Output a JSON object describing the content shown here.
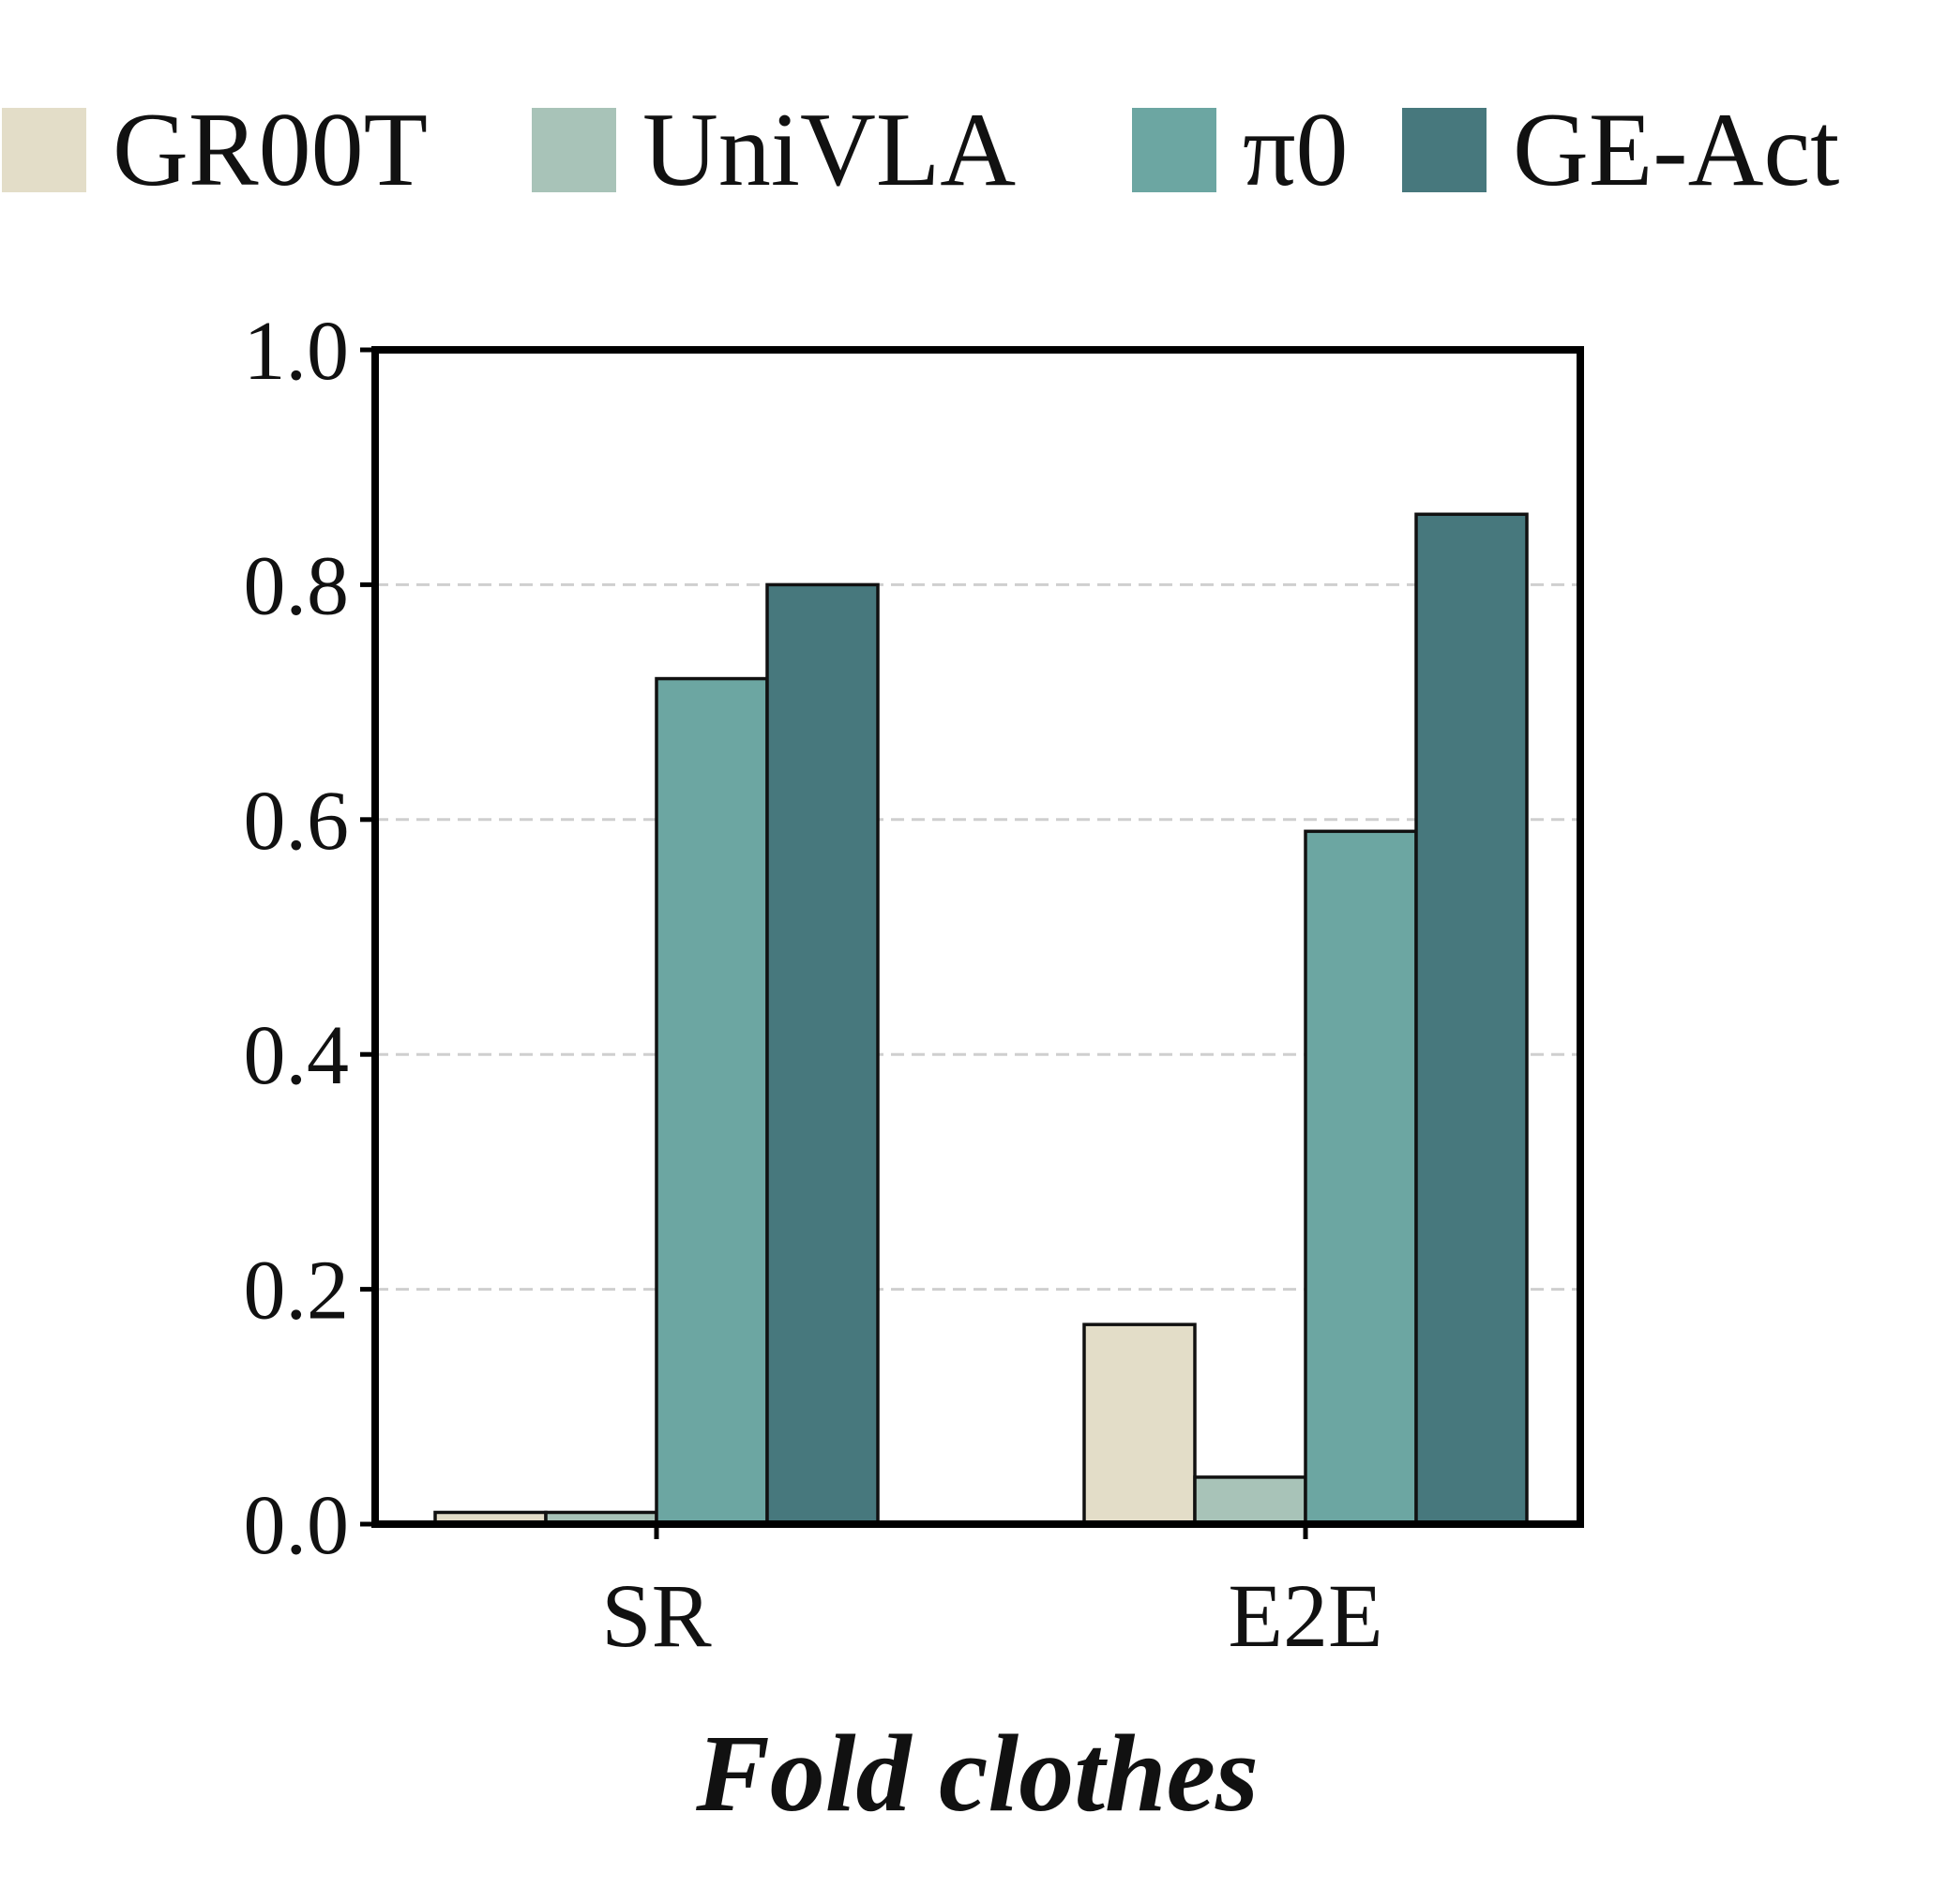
{
  "chart_data": {
    "type": "bar",
    "title": "Fold clothes",
    "xlabel": "",
    "ylabel": "",
    "categories": [
      "SR",
      "E2E"
    ],
    "series": [
      {
        "name": "GR00T",
        "color": "#e3ddc8",
        "values": [
          0.01,
          0.17
        ]
      },
      {
        "name": "UniVLA",
        "color": "#a8c3b8",
        "values": [
          0.01,
          0.04
        ]
      },
      {
        "name": "π0",
        "color": "#6ca6a2",
        "values": [
          0.72,
          0.59
        ]
      },
      {
        "name": "GE-Act",
        "color": "#47787d",
        "values": [
          0.8,
          0.86
        ]
      }
    ],
    "ylim": [
      0.0,
      1.0
    ],
    "yticks": [
      "0.0",
      "0.2",
      "0.4",
      "0.6",
      "0.8",
      "1.0"
    ],
    "grid": "horizontal dashed",
    "legend_position": "top"
  }
}
